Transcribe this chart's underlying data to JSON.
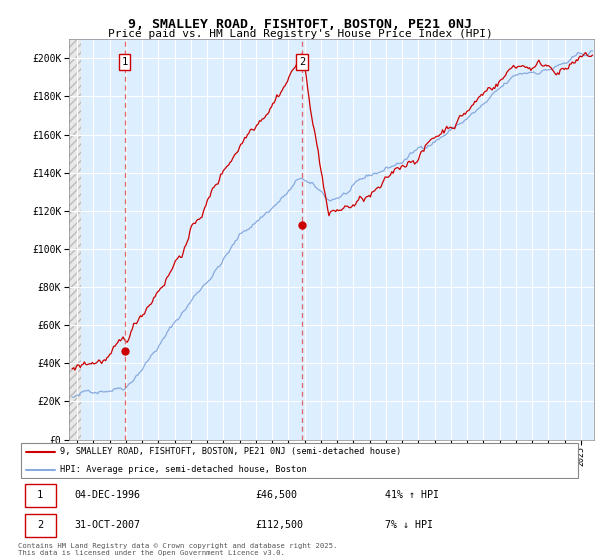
{
  "title_line1": "9, SMALLEY ROAD, FISHTOFT, BOSTON, PE21 0NJ",
  "title_line2": "Price paid vs. HM Land Registry's House Price Index (HPI)",
  "ylim": [
    0,
    210000
  ],
  "yticks": [
    0,
    20000,
    40000,
    60000,
    80000,
    100000,
    120000,
    140000,
    160000,
    180000,
    200000
  ],
  "legend_red": "9, SMALLEY ROAD, FISHTOFT, BOSTON, PE21 0NJ (semi-detached house)",
  "legend_blue": "HPI: Average price, semi-detached house, Boston",
  "transaction1_date": "04-DEC-1996",
  "transaction1_price": "£46,500",
  "transaction1_hpi": "41% ↑ HPI",
  "transaction2_date": "31-OCT-2007",
  "transaction2_price": "£112,500",
  "transaction2_hpi": "7% ↓ HPI",
  "footnote": "Contains HM Land Registry data © Crown copyright and database right 2025.\nThis data is licensed under the Open Government Licence v3.0.",
  "vline1_x": 1996.92,
  "vline2_x": 2007.83,
  "dot1_x": 1996.92,
  "dot1_y": 46500,
  "dot2_x": 2007.83,
  "dot2_y": 112500,
  "red_color": "#cc0000",
  "blue_color": "#88aadd",
  "chart_bg": "#ddeeff",
  "hatch_color": "#cccccc",
  "xlim_start": 1993.5,
  "xlim_end": 2025.8,
  "hatch_end": 1994.25
}
